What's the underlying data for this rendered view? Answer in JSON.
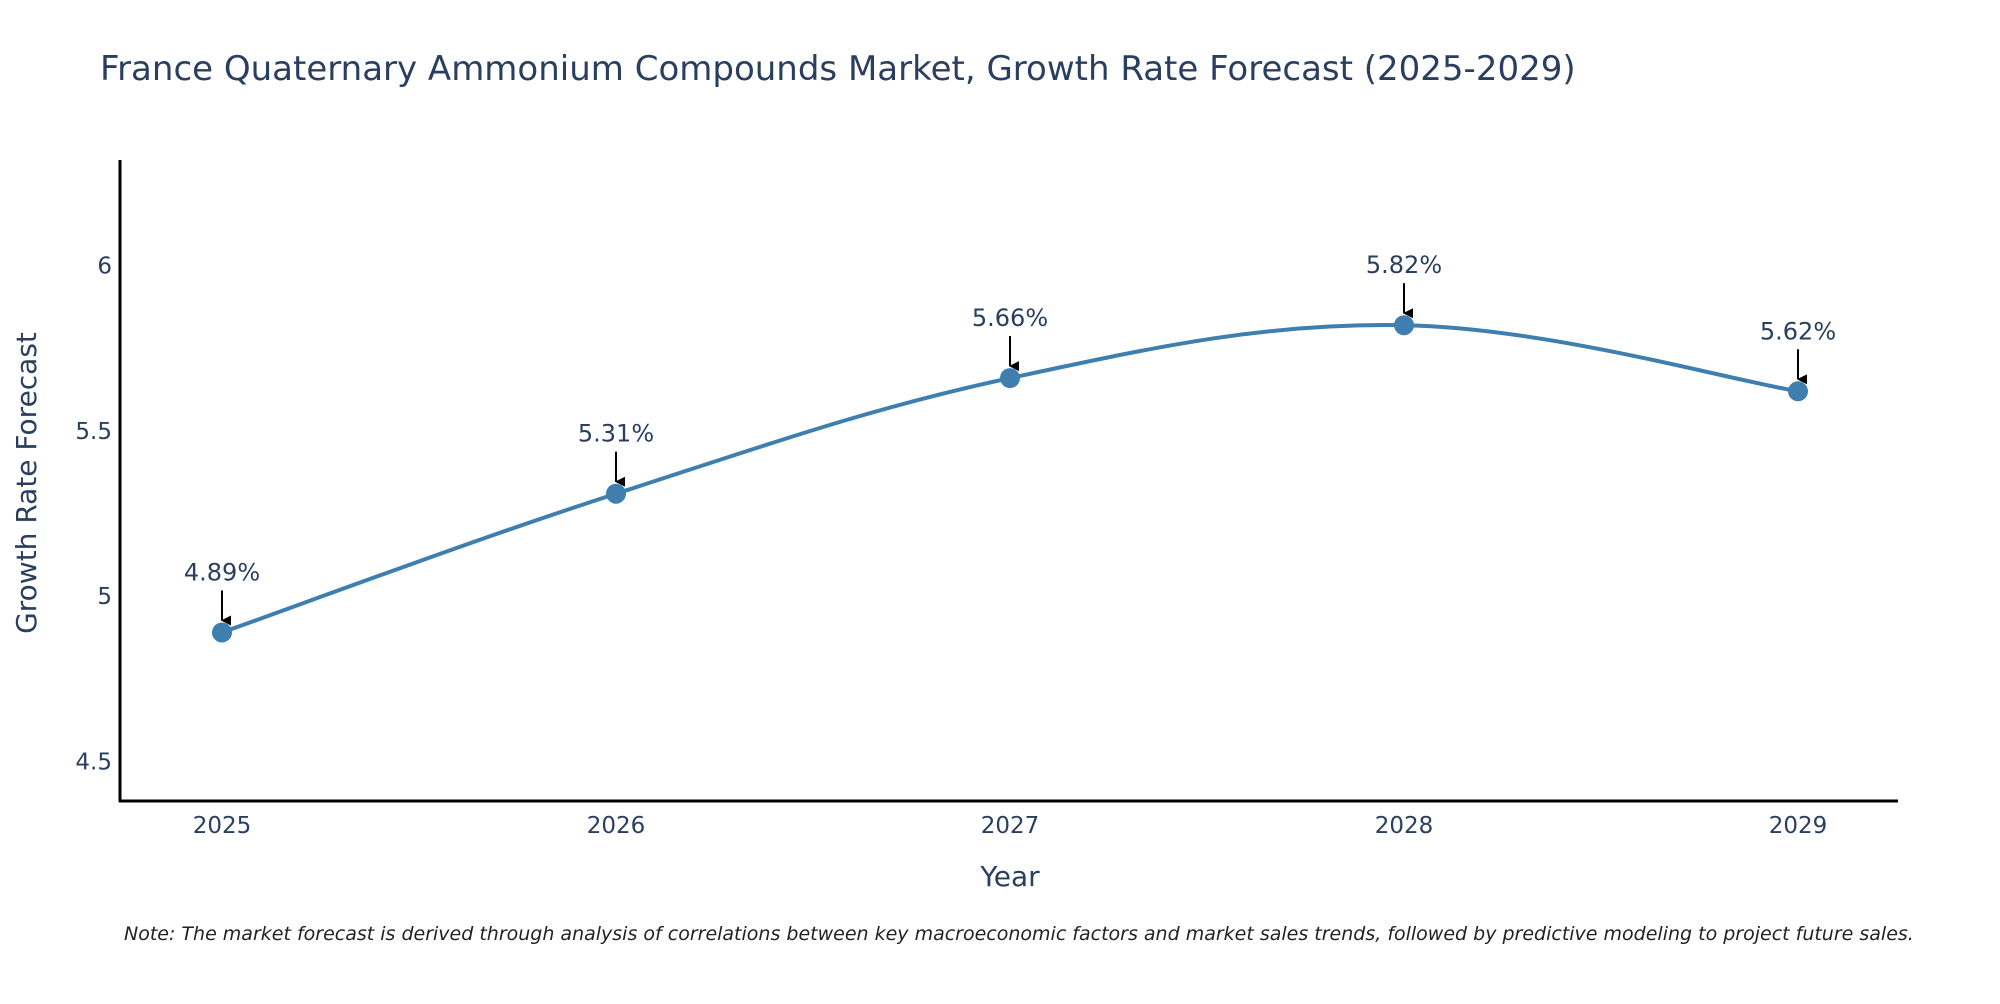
{
  "chart_data": {
    "type": "line",
    "title": "France Quaternary Ammonium Compounds Market, Growth Rate Forecast (2025-2029)",
    "xlabel": "Year",
    "ylabel": "Growth Rate Forecast",
    "categories": [
      "2025",
      "2026",
      "2027",
      "2028",
      "2029"
    ],
    "series": [
      {
        "name": "Growth Rate Forecast",
        "values": [
          4.89,
          5.31,
          5.66,
          5.82,
          5.62
        ],
        "labels": [
          "4.89%",
          "5.31%",
          "5.66%",
          "5.82%",
          "5.62%"
        ],
        "color": "#3f7faf"
      }
    ],
    "ylim": [
      4.38,
      6.32
    ],
    "yticks": [
      4.5,
      5,
      5.5,
      6
    ],
    "ytick_labels": [
      "4.5",
      "5",
      "5.5",
      "6"
    ],
    "grid": false,
    "legend": "none",
    "note": "Note: The market forecast is derived through analysis of correlations between key macroeconomic factors and market sales trends, followed by predictive modeling to project future sales."
  },
  "colors": {
    "text": "#2a3f5f",
    "axis": "#000000",
    "line": "#3f7faf",
    "arrow": "#000000"
  }
}
